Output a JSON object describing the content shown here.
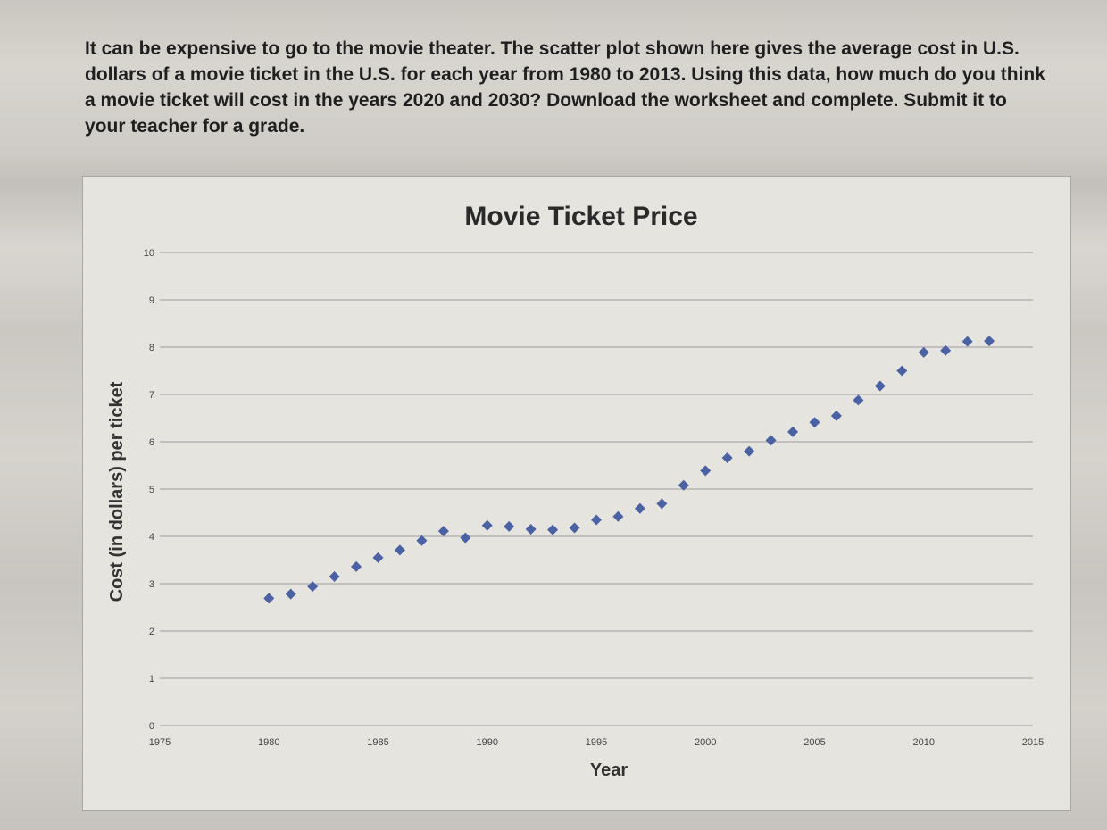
{
  "prompt_text": "It can be expensive to go to the movie theater. The scatter plot shown here gives the average cost in U.S. dollars of a movie ticket in the U.S. for each year from 1980 to 2013. Using this data, how much do you think a movie ticket will cost in the years 2020 and 2030? Download the worksheet and complete. Submit it to your teacher for a grade.",
  "chart_data": {
    "type": "scatter",
    "title": "Movie Ticket Price",
    "xlabel": "Year",
    "ylabel": "Cost (in dollars) per ticket",
    "xlim": [
      1975,
      2015
    ],
    "ylim": [
      0,
      10
    ],
    "x_ticks": [
      "1975",
      "1980",
      "1985",
      "1990",
      "1995",
      "2000",
      "2005",
      "2010",
      "2015"
    ],
    "y_ticks": [
      "0",
      "1",
      "2",
      "3",
      "4",
      "5",
      "6",
      "7",
      "8",
      "9",
      "10"
    ],
    "grid": true,
    "marker": "diamond",
    "marker_color": "#4a62a3",
    "series": [
      {
        "x": [
          1980,
          1981,
          1982,
          1983,
          1984,
          1985,
          1986,
          1987,
          1988,
          1989,
          1990,
          1991,
          1992,
          1993,
          1994,
          1995,
          1996,
          1997,
          1998,
          1999,
          2000,
          2001,
          2002,
          2003,
          2004,
          2005,
          2006,
          2007,
          2008,
          2009,
          2010,
          2011,
          2012,
          2013
        ],
        "y": [
          2.69,
          2.78,
          2.94,
          3.15,
          3.36,
          3.55,
          3.71,
          3.91,
          4.11,
          3.97,
          4.23,
          4.21,
          4.15,
          4.14,
          4.18,
          4.35,
          4.42,
          4.59,
          4.69,
          5.08,
          5.39,
          5.66,
          5.8,
          6.03,
          6.21,
          6.41,
          6.55,
          6.88,
          7.18,
          7.5,
          7.89,
          7.93,
          8.12,
          8.13
        ]
      }
    ]
  }
}
